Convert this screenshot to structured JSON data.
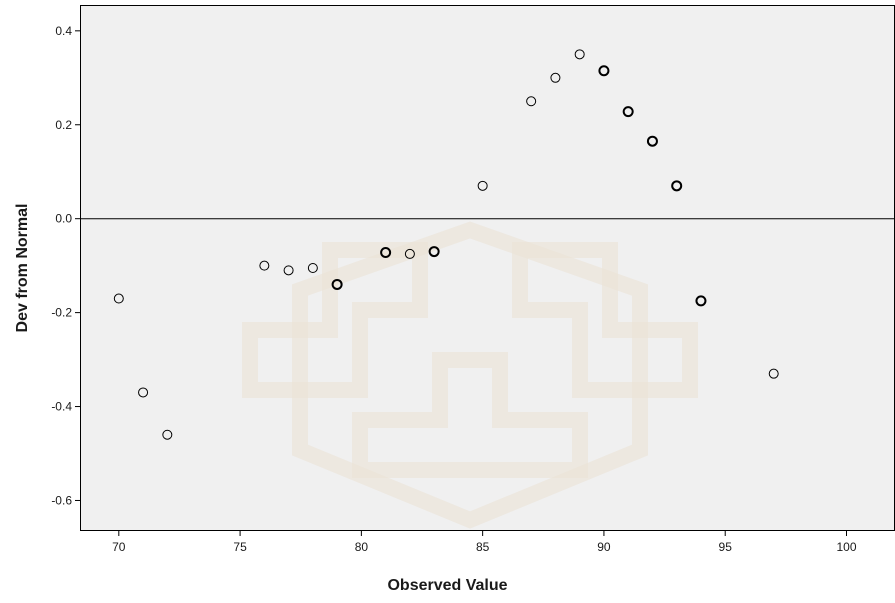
{
  "chart_data": {
    "type": "scatter",
    "title": "",
    "xlabel": "Observed Value",
    "ylabel": "Dev from Normal",
    "xlim": [
      68.4,
      102
    ],
    "ylim": [
      -0.665,
      0.455
    ],
    "xticks": [
      70,
      75,
      80,
      85,
      90,
      95,
      100
    ],
    "yticks": [
      0.4,
      0.2,
      0.0,
      -0.2,
      -0.4,
      -0.6
    ],
    "ytick_labels": [
      "0.4",
      "0.2",
      "0.0",
      "-0.2",
      "-0.4",
      "-0.6"
    ],
    "reference_line_y": 0.0,
    "grid": false,
    "marker": "hollow-circle",
    "plot_background": "#f0f0f0",
    "point_color": "#000000",
    "points": [
      {
        "x": 70,
        "y": -0.17,
        "n": 1
      },
      {
        "x": 71,
        "y": -0.37,
        "n": 1
      },
      {
        "x": 72,
        "y": -0.46,
        "n": 1
      },
      {
        "x": 76,
        "y": -0.1,
        "n": 1
      },
      {
        "x": 77,
        "y": -0.11,
        "n": 1
      },
      {
        "x": 78,
        "y": -0.105,
        "n": 1
      },
      {
        "x": 79,
        "y": -0.14,
        "n": 2
      },
      {
        "x": 81,
        "y": -0.072,
        "n": 2
      },
      {
        "x": 82,
        "y": -0.075,
        "n": 1
      },
      {
        "x": 83,
        "y": -0.07,
        "n": 2
      },
      {
        "x": 85,
        "y": 0.07,
        "n": 1
      },
      {
        "x": 87,
        "y": 0.25,
        "n": 1
      },
      {
        "x": 88,
        "y": 0.3,
        "n": 1
      },
      {
        "x": 89,
        "y": 0.35,
        "n": 1
      },
      {
        "x": 90,
        "y": 0.315,
        "n": 2
      },
      {
        "x": 91,
        "y": 0.228,
        "n": 2
      },
      {
        "x": 92,
        "y": 0.165,
        "n": 2
      },
      {
        "x": 93,
        "y": 0.07,
        "n": 2
      },
      {
        "x": 94,
        "y": -0.175,
        "n": 2
      },
      {
        "x": 97,
        "y": -0.33,
        "n": 1
      }
    ]
  }
}
